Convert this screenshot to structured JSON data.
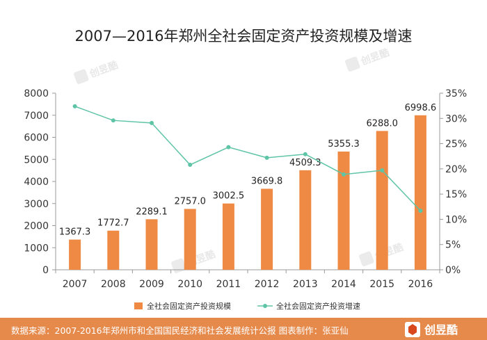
{
  "chart_data": {
    "type": "bar+line",
    "title": "2007—2016年郑州全社会固定资产投资规模及增速",
    "categories": [
      "2007",
      "2008",
      "2009",
      "2010",
      "2011",
      "2012",
      "2013",
      "2014",
      "2015",
      "2016"
    ],
    "series": [
      {
        "name": "全社会固定资产投资规模",
        "type": "bar",
        "axis": "left",
        "values": [
          1367.3,
          1772.7,
          2289.1,
          2757.0,
          3002.5,
          3669.8,
          4509.3,
          5355.3,
          6288.0,
          6998.6
        ],
        "labels": [
          "1367.3",
          "1772.7",
          "2289.1",
          "2757.0",
          "3002.5",
          "3669.8",
          "4509.3",
          "5355.3",
          "6288.0",
          "6998.6"
        ],
        "color": "#ee8a44"
      },
      {
        "name": "全社会固定资产投资增速",
        "type": "line",
        "axis": "right",
        "values": [
          32.4,
          29.6,
          29.1,
          20.8,
          24.3,
          22.2,
          22.9,
          18.9,
          19.7,
          11.7
        ],
        "color": "#5ec4a6"
      }
    ],
    "y_left": {
      "range": [
        0,
        8000
      ],
      "ticks": [
        "0",
        "1000",
        "2000",
        "3000",
        "4000",
        "5000",
        "6000",
        "7000",
        "8000"
      ]
    },
    "y_right": {
      "range": [
        0,
        35
      ],
      "ticks": [
        "0%",
        "5%",
        "10%",
        "15%",
        "20%",
        "25%",
        "30%",
        "35%"
      ]
    },
    "grid": false,
    "legend_position": "bottom"
  },
  "footer": {
    "text": "数据来源：2007-2016年郑州市和全国国民经济和社会发展统计公报  图表制作：张亚仙",
    "logo_text": "创昱酷"
  },
  "watermark": {
    "text": "创昱酷"
  },
  "colors": {
    "bar": "#ee8a44",
    "line": "#5ec4a6",
    "footer_bg": "#e68a4c",
    "axis": "#9a9a9a"
  }
}
